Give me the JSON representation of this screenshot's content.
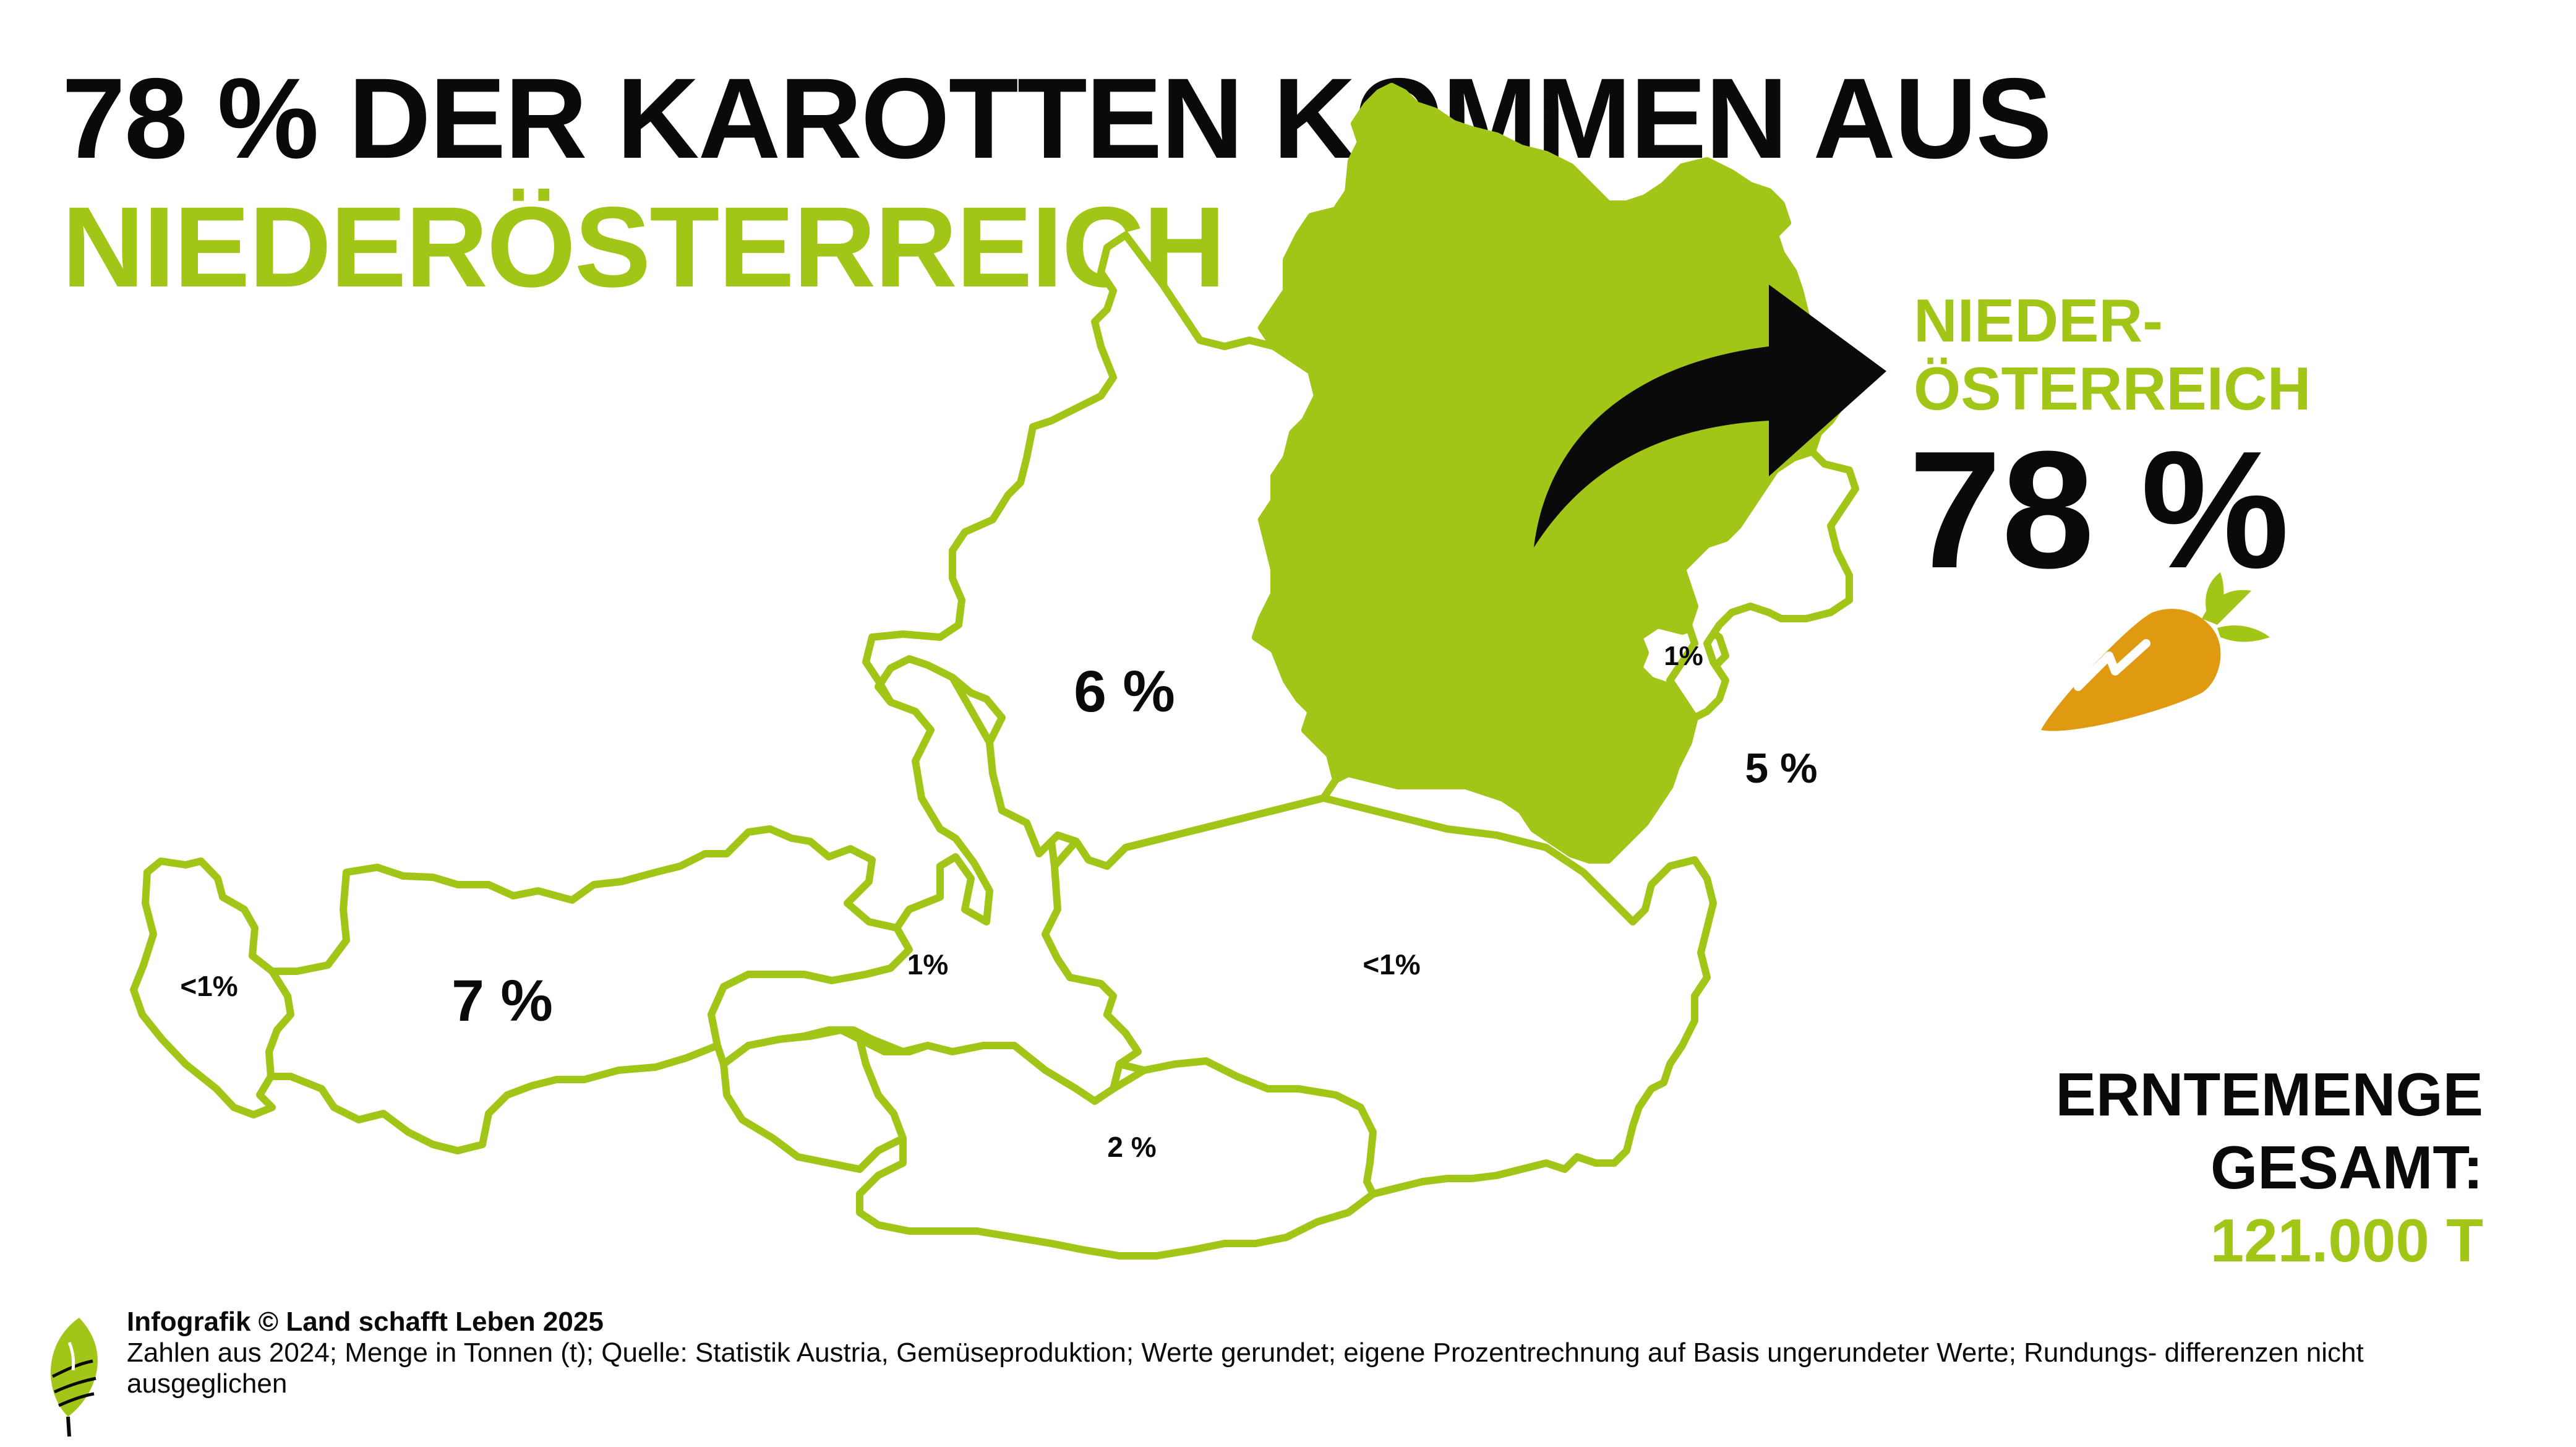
{
  "title": {
    "line1": "78 % DER KAROTTEN KOMMEN AUS",
    "line2": "NIEDERÖSTERREICH"
  },
  "highlight": {
    "region_line1": "NIEDER-",
    "region_line2": "ÖSTERREICH",
    "value": "78 %"
  },
  "regions": [
    {
      "id": "vorarlberg",
      "label": "<1%",
      "highlight": false
    },
    {
      "id": "tirol",
      "label": "7 %",
      "highlight": false
    },
    {
      "id": "osttirol",
      "label": "",
      "highlight": false
    },
    {
      "id": "salzburg",
      "label": "1%",
      "highlight": false
    },
    {
      "id": "kaernten",
      "label": "2 %",
      "highlight": false
    },
    {
      "id": "oberoesterreich",
      "label": "6 %",
      "highlight": false
    },
    {
      "id": "steiermark",
      "label": "<1%",
      "highlight": false
    },
    {
      "id": "niederoesterreich",
      "label": "",
      "highlight": true
    },
    {
      "id": "wien",
      "label": "1%",
      "highlight": false
    },
    {
      "id": "burgenland",
      "label": "5 %",
      "highlight": false
    }
  ],
  "harvest": {
    "label_line1": "ERNTEMENGE",
    "label_line2": "GESAMT:",
    "value": "121.000 T"
  },
  "footer": {
    "credit": "Infografik © Land schafft Leben 2025",
    "source": "Zahlen aus 2024; Menge in Tonnen (t); Quelle: Statistik Austria, Gemüseproduktion; Werte gerundet; eigene Prozentrechnung auf Basis ungerundeter Werte; Rundungs- differenzen nicht ausgeglichen"
  },
  "colors": {
    "accent": "#a2c617",
    "text": "#0a0a0a",
    "carrot": "#e09a12"
  },
  "icons": [
    "curved-arrow-icon",
    "carrot-icon",
    "leaf-logo-icon"
  ]
}
